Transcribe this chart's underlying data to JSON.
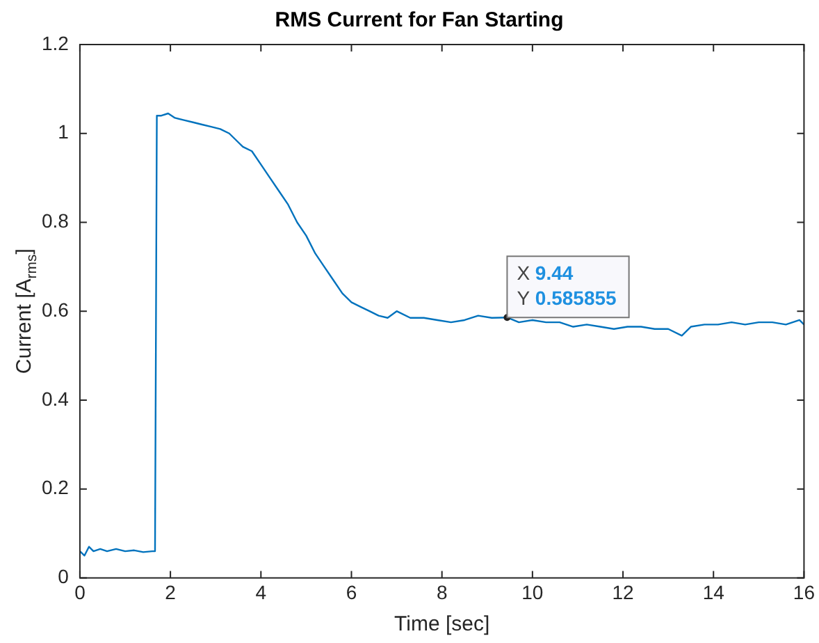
{
  "chart_data": {
    "type": "line",
    "title": "RMS Current for Fan Starting",
    "xlabel": "Time [sec]",
    "ylabel": "Current [A$_{rms}$]",
    "xlim": [
      0,
      16
    ],
    "xticks": [
      0,
      2,
      4,
      6,
      8,
      10,
      12,
      14,
      16
    ],
    "ylim": [
      0,
      1.2
    ],
    "yticks": [
      0,
      0.2,
      0.4,
      0.6,
      0.8,
      1,
      1.2
    ],
    "grid": false,
    "legend": false,
    "marker": "none",
    "line_style": "solid",
    "series": [
      {
        "color": "#0072bd",
        "x": [
          0,
          0.1,
          0.2,
          0.3,
          0.45,
          0.6,
          0.8,
          1.0,
          1.2,
          1.4,
          1.6,
          1.66,
          1.7,
          1.8,
          1.95,
          2.1,
          2.3,
          2.5,
          2.7,
          2.9,
          3.1,
          3.3,
          3.5,
          3.6,
          3.8,
          4.0,
          4.2,
          4.4,
          4.6,
          4.8,
          5.0,
          5.2,
          5.4,
          5.6,
          5.8,
          6.0,
          6.2,
          6.4,
          6.6,
          6.8,
          7.0,
          7.3,
          7.6,
          7.9,
          8.2,
          8.5,
          8.8,
          9.1,
          9.44,
          9.7,
          10.0,
          10.3,
          10.6,
          10.9,
          11.2,
          11.5,
          11.8,
          12.1,
          12.4,
          12.7,
          13.0,
          13.3,
          13.5,
          13.8,
          14.1,
          14.4,
          14.7,
          15.0,
          15.3,
          15.6,
          15.9,
          16
        ],
        "values": [
          0.06,
          0.05,
          0.07,
          0.06,
          0.065,
          0.06,
          0.065,
          0.06,
          0.062,
          0.058,
          0.06,
          0.06,
          1.04,
          1.04,
          1.045,
          1.035,
          1.03,
          1.025,
          1.02,
          1.015,
          1.01,
          1.0,
          0.98,
          0.97,
          0.96,
          0.93,
          0.9,
          0.87,
          0.84,
          0.8,
          0.77,
          0.73,
          0.7,
          0.67,
          0.64,
          0.62,
          0.61,
          0.6,
          0.59,
          0.585,
          0.6,
          0.585,
          0.585,
          0.58,
          0.575,
          0.58,
          0.59,
          0.585,
          0.585855,
          0.575,
          0.58,
          0.575,
          0.575,
          0.565,
          0.57,
          0.565,
          0.56,
          0.565,
          0.565,
          0.56,
          0.56,
          0.545,
          0.565,
          0.57,
          0.57,
          0.575,
          0.57,
          0.575,
          0.575,
          0.57,
          0.58,
          0.57
        ]
      }
    ],
    "annotations": [
      {
        "text": "X 9.44\nY 0.585855",
        "x": 9.44,
        "y": 0.585855
      }
    ]
  }
}
